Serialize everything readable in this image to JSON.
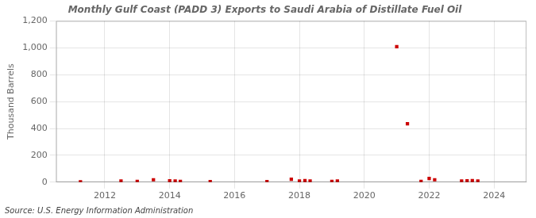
{
  "chart_data": {
    "type": "scatter",
    "title": "Monthly Gulf Coast (PADD 3) Exports to Saudi Arabia of Distillate Fuel Oil",
    "ylabel": "Thousand Barrels",
    "annotations": [
      "Source: U.S. Energy Information Administration"
    ],
    "color": "#cc0000",
    "marker": "square",
    "grid": true,
    "xlim": [
      2010.5,
      2025.0
    ],
    "xticks": [
      2012,
      2014,
      2016,
      2018,
      2020,
      2022,
      2024
    ],
    "ylim": [
      0,
      1200
    ],
    "yticks": [
      0,
      200,
      400,
      600,
      800,
      {
        "value": 1000,
        "label": "1,000"
      },
      {
        "value": 1200,
        "label": "1,200"
      }
    ],
    "x": [
      2011.25,
      2012.5,
      2013.0,
      2013.5,
      2014.0,
      2014.17,
      2014.33,
      2015.25,
      2017.0,
      2017.75,
      2018.0,
      2018.17,
      2018.33,
      2019.0,
      2019.17,
      2021.0,
      2021.33,
      2021.75,
      2022.0,
      2022.17,
      2023.0,
      2023.17,
      2023.33,
      2023.5
    ],
    "values": [
      3,
      8,
      5,
      18,
      10,
      8,
      6,
      4,
      4,
      22,
      8,
      12,
      8,
      5,
      8,
      1008,
      435,
      5,
      28,
      18,
      8,
      10,
      12,
      8
    ]
  }
}
